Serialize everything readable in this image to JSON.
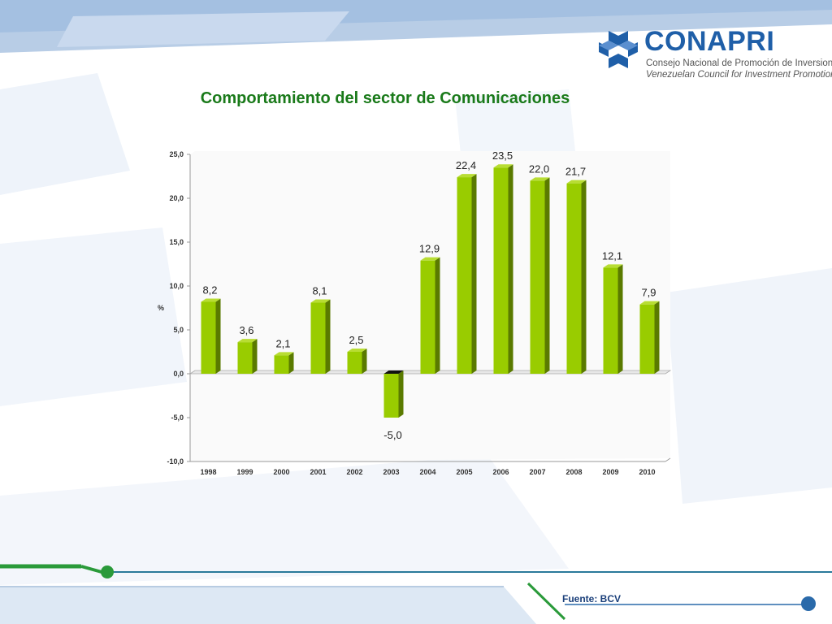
{
  "header": {
    "logo_name": "CONAPRI",
    "logo_subtitle_es": "Consejo Nacional de Promoción de Inversiones",
    "logo_subtitle_en": "Venezuelan Council for Investment Promotion"
  },
  "footer": {
    "source": "Fuente: BCV"
  },
  "colors": {
    "bar_face": "#99cc00",
    "bar_side": "#5a7a00",
    "bar_top": "#b8dd33",
    "negative_top": "#111111",
    "title": "#1a7a1a",
    "brand": "#1f5fa8"
  },
  "chart_data": {
    "type": "bar",
    "title": "Comportamiento del sector de Comunicaciones",
    "xlabel": "",
    "ylabel": "%",
    "categories": [
      "1998",
      "1999",
      "2000",
      "2001",
      "2002",
      "2003",
      "2004",
      "2005",
      "2006",
      "2007",
      "2008",
      "2009",
      "2010"
    ],
    "values": [
      8.2,
      3.6,
      2.1,
      8.1,
      2.5,
      -5.0,
      12.9,
      22.4,
      23.5,
      22.0,
      21.7,
      12.1,
      7.9
    ],
    "data_labels": [
      "8,2",
      "3,6",
      "2,1",
      "8,1",
      "2,5",
      "-5,0",
      "12,9",
      "22,4",
      "23,5",
      "22,0",
      "21,7",
      "12,1",
      "7,9"
    ],
    "ylim": [
      -10,
      25
    ],
    "yticks": [
      25,
      20,
      15,
      10,
      5,
      0,
      -5,
      -10
    ],
    "ytick_labels": [
      "25,0",
      "20,0",
      "15,0",
      "10,0",
      "5,0",
      "0,0",
      "-5,0",
      "-10,0"
    ],
    "grid": false,
    "legend": "none"
  }
}
